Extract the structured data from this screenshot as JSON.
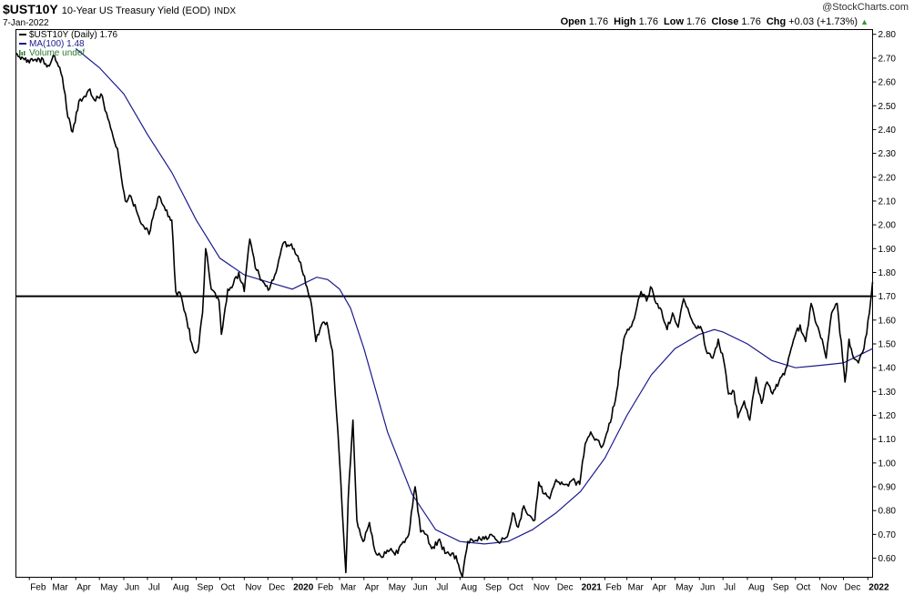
{
  "header": {
    "symbol": "$UST10Y",
    "description": "10-Year US Treasury Yield (EOD)",
    "exchange": "INDX",
    "date": "7-Jan-2022",
    "brand": "@StockCharts.com",
    "quote": {
      "open_label": "Open",
      "open": "1.76",
      "high_label": "High",
      "high": "1.76",
      "low_label": "Low",
      "low": "1.76",
      "close_label": "Close",
      "close": "1.76",
      "chg_label": "Chg",
      "chg": "+0.03 (+1.73%)"
    },
    "up_icon": "triangle-up-icon",
    "up_color": "#2a9a2a"
  },
  "legend": [
    {
      "label": "$UST10Y (Daily) 1.76",
      "color": "#000000"
    },
    {
      "label": "MA(100) 1.48",
      "color": "#1a1a8c"
    },
    {
      "label": "Volume undef",
      "color": "#2d7a2d"
    }
  ],
  "chart_data": {
    "type": "line",
    "xlabel": "",
    "ylabel": "",
    "x_tick_labels": [
      "Feb",
      "Mar",
      "Apr",
      "May",
      "Jun",
      "Jul",
      "Aug",
      "Sep",
      "Oct",
      "Nov",
      "Dec",
      "2020",
      "Feb",
      "Mar",
      "Apr",
      "May",
      "Jun",
      "Jul",
      "Aug",
      "Sep",
      "Oct",
      "Nov",
      "Dec",
      "2021",
      "Feb",
      "Mar",
      "Apr",
      "May",
      "Jun",
      "Jul",
      "Aug",
      "Sep",
      "Oct",
      "Nov",
      "Dec",
      "2022"
    ],
    "y_tick_labels": [
      "0.60",
      "0.70",
      "0.80",
      "0.90",
      "1.00",
      "1.10",
      "1.20",
      "1.30",
      "1.40",
      "1.50",
      "1.60",
      "1.70",
      "1.80",
      "1.90",
      "2.00",
      "2.10",
      "2.20",
      "2.30",
      "2.40",
      "2.50",
      "2.60",
      "2.70",
      "2.80"
    ],
    "ylim": [
      0.52,
      2.82
    ],
    "x_start": "2019-01-15",
    "x_end": "2022-01-07",
    "horizontal_line": 1.7,
    "series": [
      {
        "name": "$UST10Y (Daily)",
        "color": "#000000",
        "points": [
          [
            "2019-01-15",
            2.72
          ],
          [
            "2019-01-24",
            2.7
          ],
          [
            "2019-02-01",
            2.68
          ],
          [
            "2019-02-12",
            2.7
          ],
          [
            "2019-02-25",
            2.67
          ],
          [
            "2019-03-05",
            2.71
          ],
          [
            "2019-03-15",
            2.62
          ],
          [
            "2019-03-22",
            2.45
          ],
          [
            "2019-03-28",
            2.39
          ],
          [
            "2019-04-05",
            2.52
          ],
          [
            "2019-04-12",
            2.54
          ],
          [
            "2019-04-19",
            2.57
          ],
          [
            "2019-04-26",
            2.52
          ],
          [
            "2019-05-03",
            2.55
          ],
          [
            "2019-05-10",
            2.47
          ],
          [
            "2019-05-17",
            2.39
          ],
          [
            "2019-05-24",
            2.32
          ],
          [
            "2019-06-03",
            2.1
          ],
          [
            "2019-06-10",
            2.12
          ],
          [
            "2019-06-17",
            2.06
          ],
          [
            "2019-06-25",
            2.0
          ],
          [
            "2019-07-03",
            1.96
          ],
          [
            "2019-07-10",
            2.06
          ],
          [
            "2019-07-16",
            2.12
          ],
          [
            "2019-07-24",
            2.06
          ],
          [
            "2019-08-01",
            2.02
          ],
          [
            "2019-08-06",
            1.72
          ],
          [
            "2019-08-13",
            1.7
          ],
          [
            "2019-08-20",
            1.6
          ],
          [
            "2019-08-28",
            1.48
          ],
          [
            "2019-09-03",
            1.47
          ],
          [
            "2019-09-09",
            1.63
          ],
          [
            "2019-09-13",
            1.9
          ],
          [
            "2019-09-20",
            1.73
          ],
          [
            "2019-09-30",
            1.68
          ],
          [
            "2019-10-03",
            1.54
          ],
          [
            "2019-10-11",
            1.73
          ],
          [
            "2019-10-18",
            1.75
          ],
          [
            "2019-10-25",
            1.8
          ],
          [
            "2019-11-01",
            1.72
          ],
          [
            "2019-11-08",
            1.94
          ],
          [
            "2019-11-15",
            1.82
          ],
          [
            "2019-11-25",
            1.76
          ],
          [
            "2019-12-03",
            1.73
          ],
          [
            "2019-12-13",
            1.82
          ],
          [
            "2019-12-20",
            1.92
          ],
          [
            "2019-12-31",
            1.92
          ],
          [
            "2020-01-08",
            1.87
          ],
          [
            "2020-01-15",
            1.79
          ],
          [
            "2020-01-24",
            1.69
          ],
          [
            "2020-01-31",
            1.51
          ],
          [
            "2020-02-07",
            1.58
          ],
          [
            "2020-02-14",
            1.59
          ],
          [
            "2020-02-21",
            1.47
          ],
          [
            "2020-02-28",
            1.13
          ],
          [
            "2020-03-06",
            0.71
          ],
          [
            "2020-03-09",
            0.54
          ],
          [
            "2020-03-12",
            0.85
          ],
          [
            "2020-03-18",
            1.18
          ],
          [
            "2020-03-23",
            0.76
          ],
          [
            "2020-03-31",
            0.67
          ],
          [
            "2020-04-08",
            0.75
          ],
          [
            "2020-04-15",
            0.63
          ],
          [
            "2020-04-22",
            0.61
          ],
          [
            "2020-04-29",
            0.62
          ],
          [
            "2020-05-07",
            0.63
          ],
          [
            "2020-05-14",
            0.62
          ],
          [
            "2020-05-21",
            0.67
          ],
          [
            "2020-05-28",
            0.7
          ],
          [
            "2020-06-05",
            0.9
          ],
          [
            "2020-06-12",
            0.71
          ],
          [
            "2020-06-19",
            0.7
          ],
          [
            "2020-06-26",
            0.64
          ],
          [
            "2020-07-06",
            0.68
          ],
          [
            "2020-07-13",
            0.62
          ],
          [
            "2020-07-20",
            0.61
          ],
          [
            "2020-07-27",
            0.61
          ],
          [
            "2020-08-04",
            0.52
          ],
          [
            "2020-08-11",
            0.67
          ],
          [
            "2020-08-18",
            0.67
          ],
          [
            "2020-08-25",
            0.69
          ],
          [
            "2020-09-01",
            0.68
          ],
          [
            "2020-09-08",
            0.7
          ],
          [
            "2020-09-15",
            0.68
          ],
          [
            "2020-09-22",
            0.67
          ],
          [
            "2020-09-30",
            0.69
          ],
          [
            "2020-10-07",
            0.79
          ],
          [
            "2020-10-14",
            0.73
          ],
          [
            "2020-10-21",
            0.82
          ],
          [
            "2020-10-28",
            0.78
          ],
          [
            "2020-11-04",
            0.76
          ],
          [
            "2020-11-09",
            0.92
          ],
          [
            "2020-11-16",
            0.87
          ],
          [
            "2020-11-23",
            0.85
          ],
          [
            "2020-12-01",
            0.93
          ],
          [
            "2020-12-08",
            0.92
          ],
          [
            "2020-12-15",
            0.91
          ],
          [
            "2020-12-22",
            0.93
          ],
          [
            "2020-12-31",
            0.91
          ],
          [
            "2021-01-07",
            1.08
          ],
          [
            "2021-01-14",
            1.13
          ],
          [
            "2021-01-21",
            1.1
          ],
          [
            "2021-01-29",
            1.07
          ],
          [
            "2021-02-08",
            1.17
          ],
          [
            "2021-02-16",
            1.3
          ],
          [
            "2021-02-25",
            1.52
          ],
          [
            "2021-03-05",
            1.57
          ],
          [
            "2021-03-12",
            1.63
          ],
          [
            "2021-03-19",
            1.72
          ],
          [
            "2021-03-26",
            1.68
          ],
          [
            "2021-03-31",
            1.74
          ],
          [
            "2021-04-07",
            1.67
          ],
          [
            "2021-04-14",
            1.64
          ],
          [
            "2021-04-21",
            1.56
          ],
          [
            "2021-04-28",
            1.63
          ],
          [
            "2021-05-05",
            1.57
          ],
          [
            "2021-05-12",
            1.69
          ],
          [
            "2021-05-19",
            1.63
          ],
          [
            "2021-05-26",
            1.58
          ],
          [
            "2021-06-04",
            1.56
          ],
          [
            "2021-06-11",
            1.46
          ],
          [
            "2021-06-18",
            1.44
          ],
          [
            "2021-06-25",
            1.52
          ],
          [
            "2021-07-02",
            1.43
          ],
          [
            "2021-07-08",
            1.29
          ],
          [
            "2021-07-15",
            1.3
          ],
          [
            "2021-07-20",
            1.19
          ],
          [
            "2021-07-28",
            1.26
          ],
          [
            "2021-08-04",
            1.18
          ],
          [
            "2021-08-12",
            1.36
          ],
          [
            "2021-08-19",
            1.25
          ],
          [
            "2021-08-26",
            1.34
          ],
          [
            "2021-09-02",
            1.29
          ],
          [
            "2021-09-10",
            1.34
          ],
          [
            "2021-09-17",
            1.37
          ],
          [
            "2021-09-24",
            1.46
          ],
          [
            "2021-09-30",
            1.53
          ],
          [
            "2021-10-07",
            1.58
          ],
          [
            "2021-10-14",
            1.51
          ],
          [
            "2021-10-21",
            1.67
          ],
          [
            "2021-10-28",
            1.58
          ],
          [
            "2021-11-04",
            1.52
          ],
          [
            "2021-11-09",
            1.44
          ],
          [
            "2021-11-16",
            1.63
          ],
          [
            "2021-11-23",
            1.67
          ],
          [
            "2021-11-30",
            1.44
          ],
          [
            "2021-12-03",
            1.34
          ],
          [
            "2021-12-08",
            1.52
          ],
          [
            "2021-12-14",
            1.44
          ],
          [
            "2021-12-20",
            1.42
          ],
          [
            "2021-12-27",
            1.48
          ],
          [
            "2022-01-03",
            1.63
          ],
          [
            "2022-01-07",
            1.76
          ]
        ]
      },
      {
        "name": "MA(100)",
        "color": "#1a1a8c",
        "points": [
          [
            "2019-04-01",
            2.74
          ],
          [
            "2019-05-01",
            2.66
          ],
          [
            "2019-06-01",
            2.55
          ],
          [
            "2019-07-01",
            2.38
          ],
          [
            "2019-08-01",
            2.22
          ],
          [
            "2019-09-01",
            2.02
          ],
          [
            "2019-10-01",
            1.86
          ],
          [
            "2019-11-01",
            1.79
          ],
          [
            "2019-12-01",
            1.76
          ],
          [
            "2020-01-01",
            1.73
          ],
          [
            "2020-02-01",
            1.78
          ],
          [
            "2020-02-15",
            1.77
          ],
          [
            "2020-03-01",
            1.73
          ],
          [
            "2020-03-15",
            1.65
          ],
          [
            "2020-04-01",
            1.48
          ],
          [
            "2020-05-01",
            1.13
          ],
          [
            "2020-06-01",
            0.87
          ],
          [
            "2020-07-01",
            0.72
          ],
          [
            "2020-08-01",
            0.67
          ],
          [
            "2020-09-01",
            0.66
          ],
          [
            "2020-10-01",
            0.67
          ],
          [
            "2020-11-01",
            0.72
          ],
          [
            "2020-12-01",
            0.79
          ],
          [
            "2021-01-01",
            0.88
          ],
          [
            "2021-02-01",
            1.02
          ],
          [
            "2021-03-01",
            1.2
          ],
          [
            "2021-04-01",
            1.37
          ],
          [
            "2021-05-01",
            1.48
          ],
          [
            "2021-06-01",
            1.54
          ],
          [
            "2021-06-20",
            1.56
          ],
          [
            "2021-07-01",
            1.55
          ],
          [
            "2021-08-01",
            1.5
          ],
          [
            "2021-09-01",
            1.43
          ],
          [
            "2021-10-01",
            1.4
          ],
          [
            "2021-11-01",
            1.41
          ],
          [
            "2021-12-01",
            1.42
          ],
          [
            "2022-01-07",
            1.48
          ]
        ]
      }
    ]
  }
}
